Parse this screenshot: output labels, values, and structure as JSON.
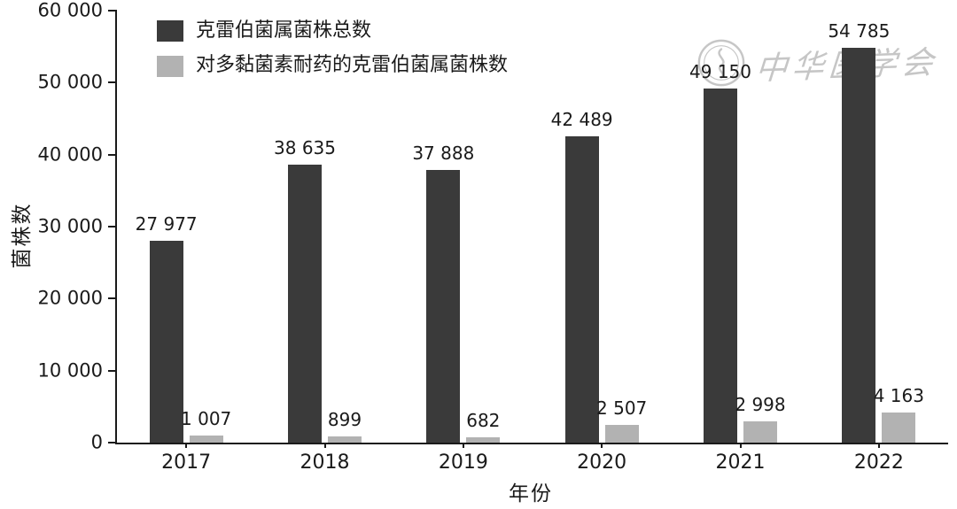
{
  "chart_data": {
    "type": "bar",
    "title": "",
    "xlabel": "年份",
    "ylabel": "菌株数",
    "categories": [
      "2017",
      "2018",
      "2019",
      "2020",
      "2021",
      "2022"
    ],
    "series": [
      {
        "name": "克雷伯菌属菌株总数",
        "color": "#3a3a3a",
        "values": [
          27977,
          38635,
          37888,
          42489,
          49150,
          54785
        ],
        "labels": [
          "27 977",
          "38 635",
          "37 888",
          "42 489",
          "49 150",
          "54 785"
        ]
      },
      {
        "name": "对多黏菌素耐药的克雷伯菌属菌株数",
        "color": "#b2b2b2",
        "values": [
          1007,
          899,
          682,
          2507,
          2998,
          4163
        ],
        "labels": [
          "1 007",
          "899",
          "682",
          "2 507",
          "2 998",
          "4 163"
        ]
      }
    ],
    "ylim": [
      0,
      60000
    ],
    "yticks": [
      0,
      10000,
      20000,
      30000,
      40000,
      50000,
      60000
    ],
    "ytick_labels": [
      "0",
      "10 000",
      "20 000",
      "30 000",
      "40 000",
      "50 000",
      "60 000"
    ],
    "grid": false,
    "legend_position": "top-left"
  },
  "watermark": {
    "text": "中华医学会"
  }
}
